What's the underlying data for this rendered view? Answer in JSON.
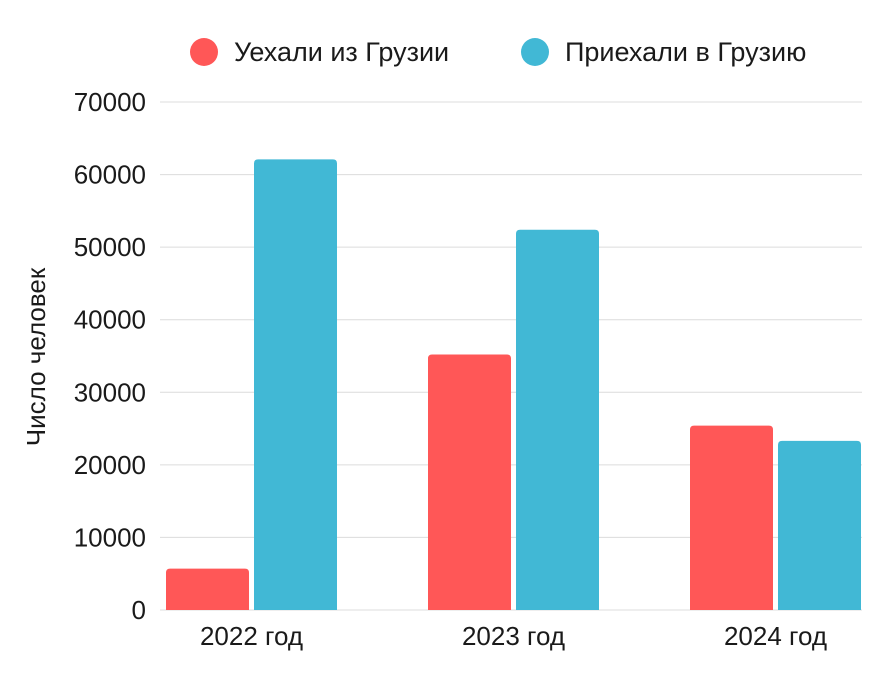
{
  "chart_data": {
    "type": "bar",
    "categories": [
      "2022 год",
      "2023 год",
      "2024 год"
    ],
    "series": [
      {
        "name": "Уехали из Грузии",
        "color": "#ff5757",
        "values": [
          5700,
          35200,
          25400
        ]
      },
      {
        "name": "Приехали в Грузию",
        "color": "#41b8d5",
        "values": [
          62100,
          52400,
          23300
        ]
      }
    ],
    "ylabel": "Число человек",
    "ylim": [
      0,
      70000
    ],
    "yticks": [
      "0",
      "10000",
      "20000",
      "30000",
      "40000",
      "50000",
      "60000",
      "70000"
    ],
    "grid": true,
    "legend_position": "top"
  }
}
